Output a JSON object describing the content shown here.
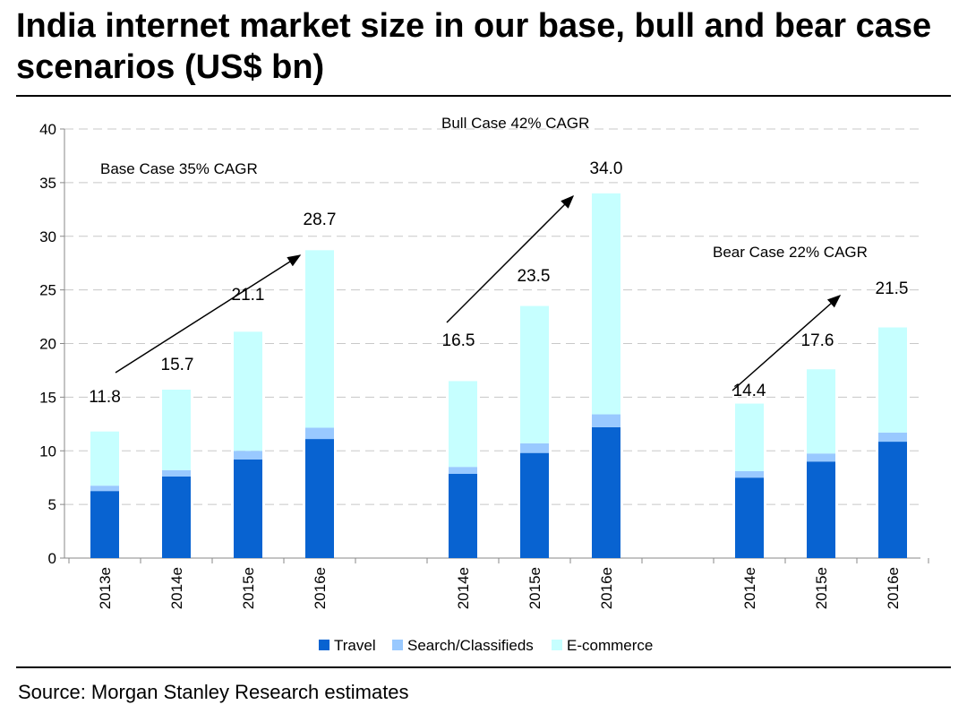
{
  "title": "India internet market size in our base, bull and bear case scenarios (US$ bn)",
  "source": "Source: Morgan Stanley Research estimates",
  "chart_data": {
    "type": "bar",
    "stacked": true,
    "categories": [
      "2013e",
      "2014e",
      "2015e",
      "2016e",
      "",
      "2014e",
      "2015e",
      "2016e",
      "",
      "2014e",
      "2015e",
      "2016e"
    ],
    "series": [
      {
        "name": "Travel",
        "color": "#0863d1",
        "values": [
          6.25,
          7.6,
          9.2,
          11.1,
          null,
          7.85,
          9.8,
          12.2,
          null,
          7.5,
          9.0,
          10.85
        ]
      },
      {
        "name": "Search/Classifieds",
        "color": "#99c9ff",
        "values": [
          0.5,
          0.6,
          0.8,
          1.05,
          null,
          0.65,
          0.9,
          1.2,
          null,
          0.6,
          0.75,
          0.85
        ]
      },
      {
        "name": "E-commerce",
        "color": "#c6ffff",
        "values": [
          5.05,
          7.5,
          11.1,
          16.55,
          null,
          8.0,
          12.8,
          20.6,
          null,
          6.3,
          7.85,
          9.8
        ]
      }
    ],
    "totals": [
      "11.8",
      "15.7",
      "21.1",
      "28.7",
      null,
      "16.5",
      "23.5",
      "34.0",
      null,
      "14.4",
      "17.6",
      "21.5"
    ],
    "ylim": [
      0,
      40
    ],
    "yticks": [
      "0",
      "5",
      "10",
      "15",
      "20",
      "25",
      "30",
      "35",
      "40"
    ],
    "grid": true,
    "legend": "bottom",
    "annotations": [
      "Base Case 35% CAGR",
      "Bull Case 42% CAGR",
      "Bear Case 22% CAGR"
    ]
  }
}
